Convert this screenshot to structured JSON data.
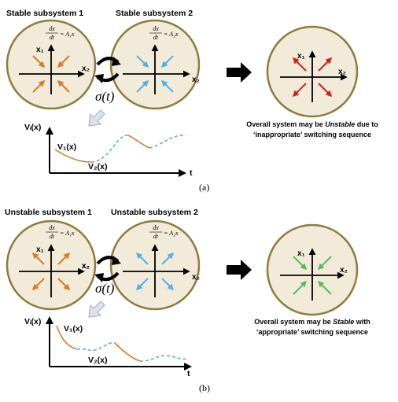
{
  "colors": {
    "circle_fill": "#f2ebda",
    "circle_stroke": "#8c7d3e",
    "orange": "#d97b2b",
    "blue": "#5aaee6",
    "red": "#d61e1e",
    "green": "#5cb85c",
    "arrow_fill": "#dde3ee",
    "arrow_stroke": "#a9b5c6"
  },
  "panel_a": {
    "subsystem1_title": "Stable subsystem 1",
    "subsystem2_title": "Stable subsystem 2",
    "eq1": {
      "num": "dx",
      "den": "dt",
      "rhs": "= A₁x"
    },
    "eq2": {
      "num": "dx",
      "den": "dt",
      "rhs": "= A₂x"
    },
    "x1_label": "x₁",
    "x2_label": "x₂",
    "switch_label": "σ(t)",
    "plot_ylabel": "Vᵢ(x)",
    "plot_xlabel": "t",
    "curve1_label": "V₁(x)",
    "curve2_label": "V₂(x)",
    "result_line1_pre": "Overall system may be ",
    "result_line1_em": "Unstable",
    "result_line1_post": " due to",
    "result_line2": "‘inappropriate’ switching sequence",
    "caption": "(a)"
  },
  "panel_b": {
    "subsystem1_title": "Unstable subsystem 1",
    "subsystem2_title": "Unstable subsystem 2",
    "eq1": {
      "num": "dx",
      "den": "dt",
      "rhs": "= A₁x"
    },
    "eq2": {
      "num": "dx",
      "den": "dt",
      "rhs": "= A₂x"
    },
    "x1_label": "x₁",
    "x2_label": "x₂",
    "switch_label": "σ(t)",
    "plot_ylabel": "Vᵢ(x)",
    "plot_xlabel": "t",
    "curve1_label": "V₁(x)",
    "curve2_label": "V₂(x)",
    "result_line1_pre": "Overall system may be ",
    "result_line1_em": "Stable",
    "result_line1_post": " with",
    "result_line2": "‘appropriate’ switching sequence",
    "caption": "(b)"
  }
}
